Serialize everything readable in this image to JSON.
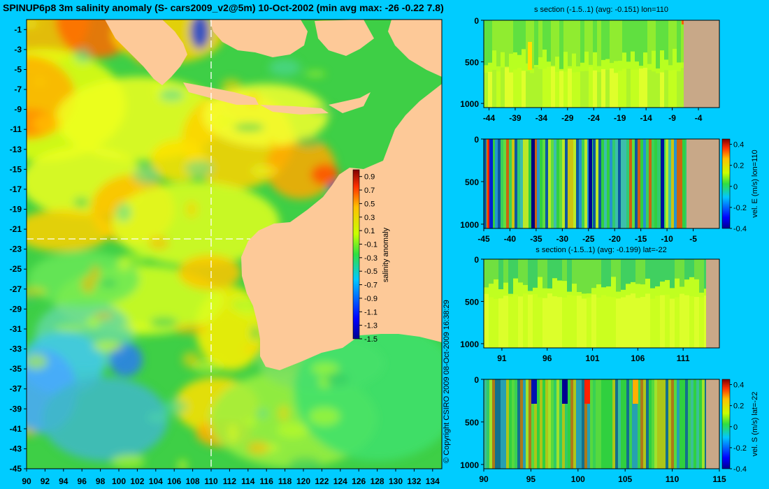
{
  "page": {
    "title": "SPINUP6p8 3m salinity anomaly (S- cars2009_v2@5m) 10-Oct-2002 (min avg max: -26 -0.22 7.8)",
    "copyright": "© Copyright CSIRO 2009   08-Oct-2009 16:38:29",
    "background": "#00ccff",
    "land_color": "#fdc998",
    "section_land_color": "#c8a888"
  },
  "chart_data": [
    {
      "type": "heatmap",
      "name": "salinity-anomaly-map",
      "xlim": [
        90,
        135
      ],
      "ylim": [
        -45,
        0
      ],
      "x_ticks": [
        "90",
        "92",
        "94",
        "96",
        "98",
        "100",
        "102",
        "104",
        "106",
        "108",
        "110",
        "112",
        "114",
        "116",
        "118",
        "120",
        "122",
        "124",
        "126",
        "128",
        "130",
        "132",
        "134"
      ],
      "y_ticks": [
        "-1",
        "-3",
        "-5",
        "-7",
        "-9",
        "-11",
        "-13",
        "-15",
        "-17",
        "-19",
        "-21",
        "-23",
        "-25",
        "-27",
        "-29",
        "-31",
        "-33",
        "-35",
        "-37",
        "-39",
        "-41",
        "-43",
        "-45"
      ],
      "section_lines": {
        "lon": 110,
        "lat": -22
      },
      "colorbar": {
        "label": "salinity anomaly",
        "range": [
          -1.5,
          1.0
        ],
        "ticks": [
          "0.9",
          "0.7",
          "0.5",
          "0.3",
          "0.1",
          "-0.1",
          "-0.3",
          "-0.5",
          "-0.7",
          "-0.9",
          "-1.1",
          "-1.3",
          "-1.5"
        ]
      }
    },
    {
      "type": "heatmap",
      "name": "salinity-section-lon110",
      "title": "s section (-1.5..1) (avg: -0.151) lon=110",
      "xlim": [
        -45,
        0
      ],
      "x_ticks": [
        "-44",
        "-39",
        "-34",
        "-29",
        "-24",
        "-19",
        "-14",
        "-9",
        "-4"
      ],
      "y_ticks": [
        "0",
        "500",
        "1000"
      ],
      "ylim": [
        1050,
        0
      ],
      "land_start": -8
    },
    {
      "type": "heatmap",
      "name": "velocity-east-lon110",
      "title": "",
      "xlim": [
        -45,
        0
      ],
      "x_ticks": [
        "-45",
        "-40",
        "-35",
        "-30",
        "-25",
        "-20",
        "-15",
        "-10",
        "-5"
      ],
      "y_ticks": [
        "0",
        "500",
        "1000"
      ],
      "ylim": [
        1050,
        0
      ],
      "land_start": -8,
      "colorbar": {
        "label": "vel. E (m/s) lon=110",
        "range": [
          -0.4,
          0.45
        ],
        "ticks": [
          "0.4",
          "0.2",
          "0",
          "-0.2",
          "-0.4"
        ]
      }
    },
    {
      "type": "heatmap",
      "name": "salinity-section-lat-22",
      "title": "s section (-1.5..1) (avg: -0.199) lat=-22",
      "xlim": [
        89,
        115
      ],
      "x_ticks": [
        "91",
        "96",
        "101",
        "106",
        "111"
      ],
      "y_ticks": [
        "0",
        "500",
        "1000"
      ],
      "ylim": [
        1050,
        0
      ],
      "land_start": 113.6
    },
    {
      "type": "heatmap",
      "name": "velocity-south-lat-22",
      "title": "",
      "xlim": [
        90,
        115
      ],
      "x_ticks": [
        "90",
        "95",
        "100",
        "105",
        "110",
        "115"
      ],
      "y_ticks": [
        "0",
        "500",
        "1000"
      ],
      "ylim": [
        1050,
        0
      ],
      "land_start": 113.6,
      "colorbar": {
        "label": "vel. S (m/s) lat=-22",
        "range": [
          -0.4,
          0.45
        ],
        "ticks": [
          "0.4",
          "0.2",
          "0",
          "-0.2",
          "-0.4"
        ]
      }
    }
  ]
}
